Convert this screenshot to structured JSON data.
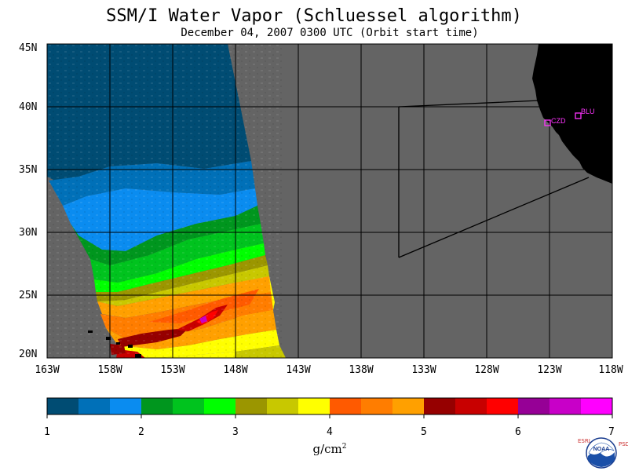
{
  "title": "SSM/I Water Vapor (Schluessel algorithm)",
  "subtitle": "December 04, 2007  0300 UTC  (Orbit start time)",
  "map": {
    "lat_range": [
      20,
      45
    ],
    "lon_range": [
      -163,
      -118
    ],
    "lat_labels": [
      "45N",
      "40N",
      "35N",
      "30N",
      "25N",
      "20N"
    ],
    "lon_labels": [
      "163W",
      "158W",
      "153W",
      "148W",
      "143W",
      "138W",
      "133W",
      "128W",
      "123W",
      "118W"
    ],
    "no_data_color": "#646464",
    "land_color": "#000000",
    "stations": [
      {
        "id": "CZD",
        "color": "#ff33ff"
      },
      {
        "id": "BLU",
        "color": "#ff33ff"
      }
    ]
  },
  "colorbar": {
    "colors": [
      "#004c73",
      "#0070b8",
      "#0a8cf0",
      "#00961e",
      "#00c31e",
      "#00ff00",
      "#9b9600",
      "#c8c800",
      "#ffff00",
      "#ff5a00",
      "#ff7d00",
      "#ffa000",
      "#960000",
      "#c80000",
      "#ff0000",
      "#960096",
      "#c800c8",
      "#ff00ff"
    ],
    "tick_labels": [
      "1",
      "2",
      "3",
      "4",
      "5",
      "6",
      "7"
    ],
    "units": "g/cm",
    "units_exp": "2"
  },
  "logo": {
    "left_text": "ESRL",
    "right_text": "PSD",
    "name": "NOAA"
  }
}
